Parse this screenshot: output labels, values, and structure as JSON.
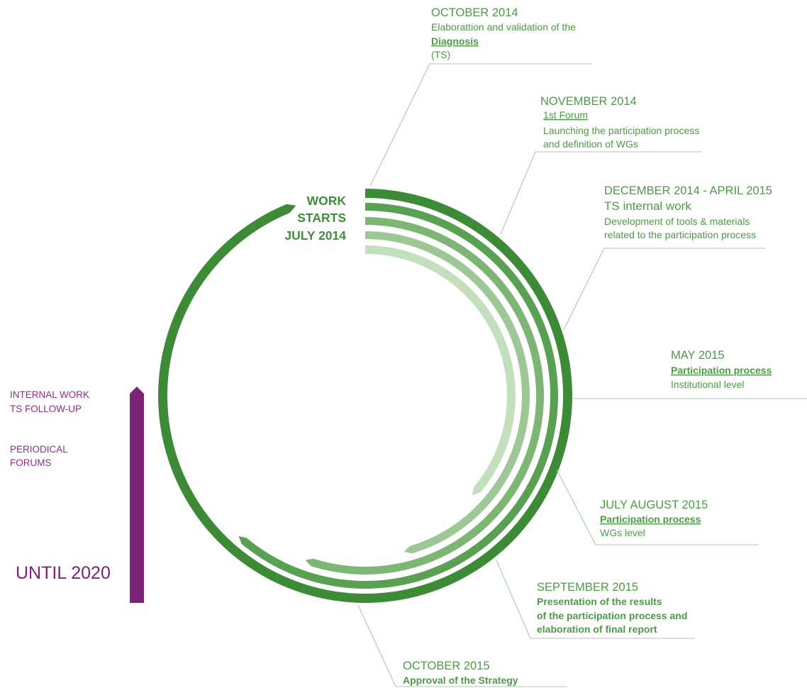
{
  "start": {
    "line1": "WORK",
    "line2": "STARTS",
    "line3": "JULY 2014"
  },
  "milestones": {
    "oct2014": {
      "date": "OCTOBER 2014",
      "line1": "Elaborattion and validation of the",
      "line2": "Diagnosis",
      "line3": "(TS)"
    },
    "nov2014": {
      "date": "NOVEMBER 2014",
      "line1": "1st Forum",
      "line2": "Launching the participation process",
      "line3": "and definition of WGs"
    },
    "dec2014": {
      "date": "DECEMBER 2014 - APRIL 2015",
      "line1": "TS internal work",
      "line2": "Development of tools & materials",
      "line3": "related to the participation process"
    },
    "may2015": {
      "date": "MAY 2015",
      "line1": "Participation process",
      "line2": "Institutional level"
    },
    "jul2015": {
      "date": "JULY  AUGUST 2015",
      "line1": "Participation process",
      "line2": "WGs level"
    },
    "sep2015": {
      "date": "SEPTEMBER 2015",
      "line1": "Presentation of the results",
      "line2": "of the participation process and",
      "line3": "elaboration of final report"
    },
    "oct2015": {
      "date": "OCTOBER 2015",
      "line1": "Approval of the Strategy"
    }
  },
  "followup": {
    "line1": "INTERNAL WORK",
    "line2": "TS FOLLOW-UP",
    "line3": "PERIODICAL",
    "line4": "FORUMS",
    "until": "UNTIL 2020"
  },
  "colors": {
    "arc_outer": "#3d8b37",
    "arc_2": "#59a052",
    "arc_3": "#7db574",
    "arc_4": "#9dc795",
    "arc_inner": "#c3dfbd",
    "text_green": "#4c9a45",
    "purple": "#7a2378",
    "leader": "#a8c8a4"
  }
}
